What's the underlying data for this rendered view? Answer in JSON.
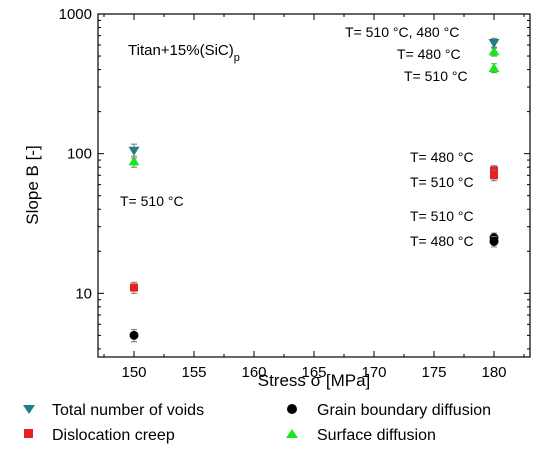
{
  "chart_data": {
    "type": "scatter",
    "xlabel": "Stress σ [MPa]",
    "ylabel": "Slope B [-]",
    "xlim": [
      147,
      183
    ],
    "ylim": [
      3.5,
      1000
    ],
    "yscale": "log",
    "grid": false,
    "x_ticks": [
      "150",
      "155",
      "160",
      "165",
      "170",
      "175",
      "180"
    ],
    "y_ticks": [
      "10",
      "100",
      "1000"
    ],
    "material_label": "Titan+15%(SiC)",
    "material_subscript": "p",
    "legend_position": "bottom",
    "series": [
      {
        "name": "Total number of voids",
        "marker": "triangle-down",
        "color": "#1f7f87",
        "points": [
          {
            "x": 150,
            "y": 105,
            "err": 12
          },
          {
            "x": 180,
            "y": 620,
            "err": 50
          }
        ]
      },
      {
        "name": "Grain boundary diffusion",
        "marker": "circle",
        "color": "#000000",
        "points": [
          {
            "x": 150,
            "y": 5.0,
            "err": 0.5
          },
          {
            "x": 180,
            "y": 25,
            "err": 2
          },
          {
            "x": 180,
            "y": 23.5,
            "err": 2
          }
        ]
      },
      {
        "name": "Dislocation creep",
        "marker": "square",
        "color": "#e8211f",
        "points": [
          {
            "x": 150,
            "y": 11,
            "err": 1
          },
          {
            "x": 180,
            "y": 76,
            "err": 6
          },
          {
            "x": 180,
            "y": 70,
            "err": 6
          }
        ]
      },
      {
        "name": "Surface diffusion",
        "marker": "triangle-up",
        "color": "#17e81c",
        "points": [
          {
            "x": 150,
            "y": 88,
            "err": 8
          },
          {
            "x": 180,
            "y": 540,
            "err": 40
          },
          {
            "x": 180,
            "y": 410,
            "err": 30
          }
        ]
      }
    ],
    "annotations": [
      "T= 510 °C, 480 °C",
      "T= 480 °C",
      "T= 510 °C",
      "T= 510 °C",
      "T= 480 °C",
      "T= 510 °C",
      "T= 510 °C",
      "T= 480 °C"
    ]
  }
}
